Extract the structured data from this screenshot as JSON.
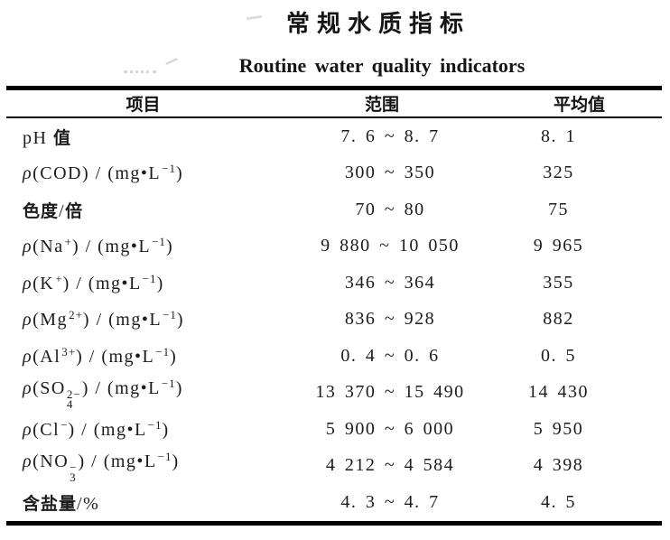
{
  "page": {
    "title_zh": "常规水质指标",
    "title_en": "Routine water quality indicators"
  },
  "table": {
    "columns": [
      "项目",
      "范围",
      "平均值"
    ],
    "rows": [
      {
        "item": [
          {
            "style": "serif",
            "text": "pH "
          },
          {
            "style": "cjk",
            "text": "值"
          }
        ],
        "range": "7. 6 ~ 8. 7",
        "average": "8. 1"
      },
      {
        "item": [
          {
            "style": "rho",
            "text": "ρ"
          },
          {
            "style": "serif",
            "text": "(COD) / (mg•L"
          },
          {
            "style": "sup",
            "text": "−1"
          },
          {
            "style": "serif",
            "text": ")"
          }
        ],
        "range": "300 ~ 350",
        "average": "325"
      },
      {
        "item": [
          {
            "style": "cjk",
            "text": "色度"
          },
          {
            "style": "serif",
            "text": "/"
          },
          {
            "style": "cjk",
            "text": "倍"
          }
        ],
        "range": "70 ~ 80",
        "average": "75"
      },
      {
        "item": [
          {
            "style": "rho",
            "text": "ρ"
          },
          {
            "style": "serif",
            "text": "(Na"
          },
          {
            "style": "sup",
            "text": "+"
          },
          {
            "style": "serif",
            "text": ") / (mg•L"
          },
          {
            "style": "sup",
            "text": "−1"
          },
          {
            "style": "serif",
            "text": ")"
          }
        ],
        "range": "9 880 ~ 10 050",
        "average": "9 965"
      },
      {
        "item": [
          {
            "style": "rho",
            "text": "ρ"
          },
          {
            "style": "serif",
            "text": "(K"
          },
          {
            "style": "sup",
            "text": "+"
          },
          {
            "style": "serif",
            "text": ") / (mg•L"
          },
          {
            "style": "sup",
            "text": "−1"
          },
          {
            "style": "serif",
            "text": ")"
          }
        ],
        "range": "346 ~ 364",
        "average": "355"
      },
      {
        "item": [
          {
            "style": "rho",
            "text": "ρ"
          },
          {
            "style": "serif",
            "text": "(Mg"
          },
          {
            "style": "sup",
            "text": "2+"
          },
          {
            "style": "serif",
            "text": ") / (mg•L"
          },
          {
            "style": "sup",
            "text": "−1"
          },
          {
            "style": "serif",
            "text": ")"
          }
        ],
        "range": "836 ~ 928",
        "average": "882"
      },
      {
        "item": [
          {
            "style": "rho",
            "text": "ρ"
          },
          {
            "style": "serif",
            "text": "(Al"
          },
          {
            "style": "sup",
            "text": "3+"
          },
          {
            "style": "serif",
            "text": ") / (mg•L"
          },
          {
            "style": "sup",
            "text": "−1"
          },
          {
            "style": "serif",
            "text": ")"
          }
        ],
        "range": "0. 4 ~ 0. 6",
        "average": "0. 5"
      },
      {
        "item": [
          {
            "style": "rho",
            "text": "ρ"
          },
          {
            "style": "serif",
            "text": "(SO"
          },
          {
            "style": "stack",
            "sup": "2−",
            "sub": "4"
          },
          {
            "style": "serif",
            "text": ") / (mg•L"
          },
          {
            "style": "sup",
            "text": "−1"
          },
          {
            "style": "serif",
            "text": ")"
          }
        ],
        "range": "13 370 ~ 15 490",
        "average": "14 430"
      },
      {
        "item": [
          {
            "style": "rho",
            "text": "ρ"
          },
          {
            "style": "serif",
            "text": "(Cl"
          },
          {
            "style": "sup",
            "text": "−"
          },
          {
            "style": "serif",
            "text": ") / (mg•L"
          },
          {
            "style": "sup",
            "text": "−1"
          },
          {
            "style": "serif",
            "text": ")"
          }
        ],
        "range": "5 900 ~ 6 000",
        "average": "5 950"
      },
      {
        "item": [
          {
            "style": "rho",
            "text": "ρ"
          },
          {
            "style": "serif",
            "text": "(NO"
          },
          {
            "style": "stack",
            "sup": "−",
            "sub": "3"
          },
          {
            "style": "serif",
            "text": ") / (mg•L"
          },
          {
            "style": "sup",
            "text": "−1"
          },
          {
            "style": "serif",
            "text": ")"
          }
        ],
        "range": "4 212 ~ 4 584",
        "average": "4 398"
      },
      {
        "item": [
          {
            "style": "cjk",
            "text": "含盐量"
          },
          {
            "style": "serif",
            "text": "/%"
          }
        ],
        "range": "4. 3 ~ 4. 7",
        "average": "4. 5"
      }
    ]
  },
  "colors": {
    "text": "#1b1b1b",
    "rule": "#000000",
    "background": "#ffffff"
  }
}
